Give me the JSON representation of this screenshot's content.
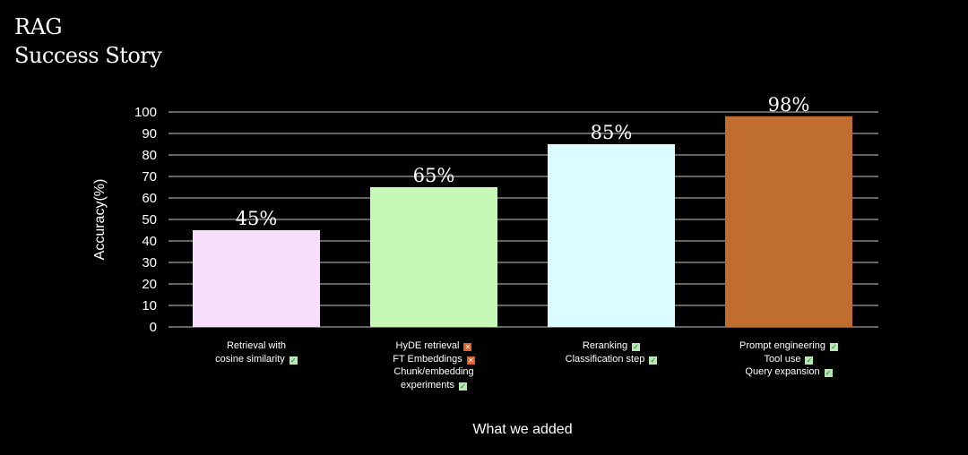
{
  "header": {
    "title_line1": "RAG",
    "title_line2": "Success Story"
  },
  "chart_data": {
    "type": "bar",
    "categories": [
      "Retrieval with cosine similarity",
      "HyDE retrieval / FT Embeddings / Chunk/embedding experiments",
      "Reranking / Classification step",
      "Prompt engineering / Tool use / Query expansion"
    ],
    "values": [
      45,
      65,
      85,
      98
    ],
    "value_labels": [
      "45%",
      "65%",
      "85%",
      "98%"
    ],
    "bar_colors": [
      "#f7defa",
      "#c6f8b7",
      "#dcfdff",
      "#bf6e30"
    ],
    "title": "RAG Success Story",
    "xlabel": "What we added",
    "ylabel": "Accuracy(%)",
    "ylim": [
      0,
      100
    ],
    "yticks": [
      0,
      10,
      20,
      30,
      40,
      50,
      60,
      70,
      80,
      90,
      100
    ],
    "grid": true,
    "additions": [
      {
        "items": [
          {
            "text": "Retrieval with",
            "mark": ""
          },
          {
            "text": "cosine similarity",
            "mark": "check"
          }
        ]
      },
      {
        "items": [
          {
            "text": "HyDE retrieval",
            "mark": "cross"
          },
          {
            "text": "FT Embeddings",
            "mark": "cross"
          },
          {
            "text": "Chunk/embedding",
            "mark": ""
          },
          {
            "text": "experiments",
            "mark": "check"
          }
        ]
      },
      {
        "items": [
          {
            "text": "Reranking",
            "mark": "check"
          },
          {
            "text": "Classification step",
            "mark": "check"
          }
        ]
      },
      {
        "items": [
          {
            "text": "Prompt engineering",
            "mark": "check"
          },
          {
            "text": "Tool use",
            "mark": "check"
          },
          {
            "text": "Query expansion",
            "mark": "check"
          }
        ]
      }
    ]
  },
  "colors": {
    "background": "#000000",
    "grid": "#c8c8c8",
    "text": "#ffffff",
    "check": "#b9e6b5",
    "cross": "#e0612a"
  }
}
